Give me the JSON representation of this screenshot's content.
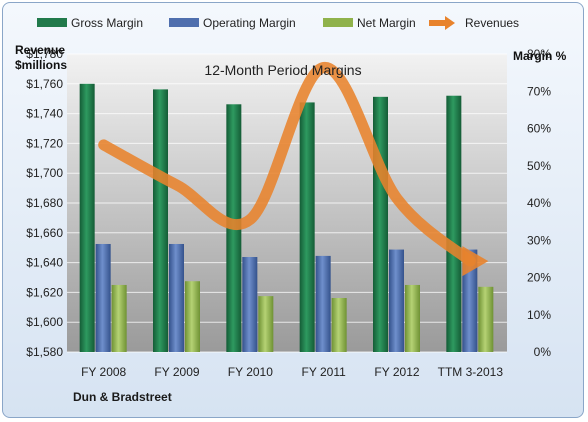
{
  "chart_data": {
    "type": "bar",
    "title": "12-Month Period Margins",
    "categories": [
      "FY 2008",
      "FY 2009",
      "FY 2010",
      "FY 2011",
      "FY 2012",
      "TTM 3-2013"
    ],
    "y_left": {
      "label_line1": "Revenue",
      "label_line2": "$millions",
      "range": [
        1580,
        1780
      ],
      "ticks": [
        "$1,580",
        "$1,600",
        "$1,620",
        "$1,640",
        "$1,660",
        "$1,680",
        "$1,700",
        "$1,720",
        "$1,740",
        "$1,760",
        "$1,780"
      ]
    },
    "y_right": {
      "label": "Margin %",
      "range": [
        0,
        80
      ],
      "ticks": [
        "0%",
        "10%",
        "20%",
        "30%",
        "40%",
        "50%",
        "60%",
        "70%",
        "80%"
      ]
    },
    "series": [
      {
        "name": "Gross Margin",
        "type": "bar",
        "axis": "right",
        "color": "#217a4b",
        "values": [
          72,
          70.5,
          66.5,
          67,
          68.5,
          68.8
        ]
      },
      {
        "name": "Operating Margin",
        "type": "bar",
        "axis": "right",
        "color": "#4f6fae",
        "values": [
          29,
          29,
          25.5,
          25.8,
          27.5,
          27.5
        ]
      },
      {
        "name": "Net Margin",
        "type": "bar",
        "axis": "right",
        "color": "#8fb24b",
        "values": [
          18,
          19,
          15,
          14.5,
          18,
          17.5
        ]
      },
      {
        "name": "Revenues",
        "type": "line",
        "axis": "left",
        "color": "#e8832c",
        "values": [
          1719,
          1692,
          1669,
          1771,
          1683,
          1641
        ]
      }
    ],
    "legend_placement": "top",
    "grid": true
  },
  "footer": {
    "company": "Dun & Bradstreet"
  }
}
